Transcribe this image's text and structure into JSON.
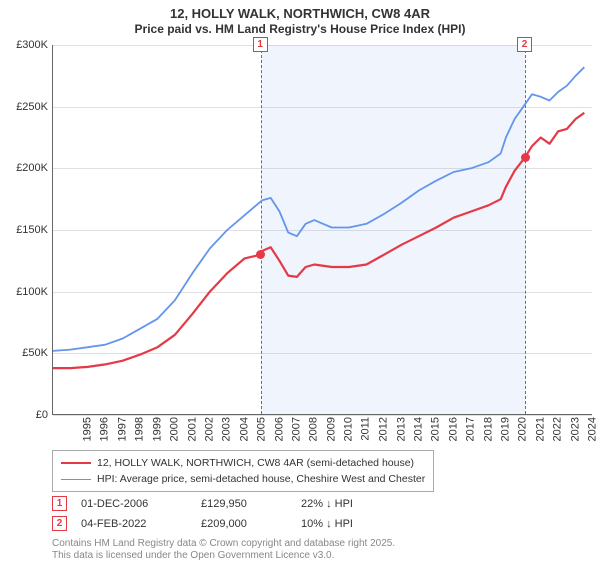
{
  "title": "12, HOLLY WALK, NORTHWICH, CW8 4AR",
  "subtitle": "Price paid vs. HM Land Registry's House Price Index (HPI)",
  "chart": {
    "type": "line",
    "xmin": 1995,
    "xmax": 2026,
    "ymin": 0,
    "ymax": 300000,
    "ytick_step": 50000,
    "ylabels": [
      "£0",
      "£50K",
      "£100K",
      "£150K",
      "£200K",
      "£250K",
      "£300K"
    ],
    "xlabels": [
      1995,
      1996,
      1997,
      1998,
      1999,
      2000,
      2001,
      2002,
      2003,
      2004,
      2005,
      2006,
      2007,
      2008,
      2009,
      2010,
      2011,
      2012,
      2013,
      2014,
      2015,
      2016,
      2017,
      2018,
      2019,
      2020,
      2021,
      2022,
      2023,
      2024,
      2025
    ],
    "shade_from": 2006.92,
    "shade_to": 2022.1,
    "series": [
      {
        "name": "subject",
        "color": "#e63946",
        "width": 2.2,
        "data": [
          [
            1995,
            38000
          ],
          [
            1996,
            38000
          ],
          [
            1997,
            39000
          ],
          [
            1998,
            41000
          ],
          [
            1999,
            44000
          ],
          [
            2000,
            49000
          ],
          [
            2001,
            55000
          ],
          [
            2002,
            65000
          ],
          [
            2003,
            82000
          ],
          [
            2004,
            100000
          ],
          [
            2005,
            115000
          ],
          [
            2006,
            127000
          ],
          [
            2006.92,
            129950
          ],
          [
            2007,
            133000
          ],
          [
            2007.5,
            136000
          ],
          [
            2008,
            125000
          ],
          [
            2008.5,
            113000
          ],
          [
            2009,
            112000
          ],
          [
            2009.5,
            120000
          ],
          [
            2010,
            122000
          ],
          [
            2011,
            120000
          ],
          [
            2012,
            120000
          ],
          [
            2013,
            122000
          ],
          [
            2014,
            130000
          ],
          [
            2015,
            138000
          ],
          [
            2016,
            145000
          ],
          [
            2017,
            152000
          ],
          [
            2018,
            160000
          ],
          [
            2019,
            165000
          ],
          [
            2020,
            170000
          ],
          [
            2020.7,
            175000
          ],
          [
            2021,
            185000
          ],
          [
            2021.5,
            198000
          ],
          [
            2022.1,
            209000
          ],
          [
            2022.5,
            218000
          ],
          [
            2023,
            225000
          ],
          [
            2023.5,
            220000
          ],
          [
            2024,
            230000
          ],
          [
            2024.5,
            232000
          ],
          [
            2025,
            240000
          ],
          [
            2025.5,
            245000
          ]
        ]
      },
      {
        "name": "hpi",
        "color": "#6495ed",
        "width": 1.8,
        "data": [
          [
            1995,
            52000
          ],
          [
            1996,
            53000
          ],
          [
            1997,
            55000
          ],
          [
            1998,
            57000
          ],
          [
            1999,
            62000
          ],
          [
            2000,
            70000
          ],
          [
            2001,
            78000
          ],
          [
            2002,
            93000
          ],
          [
            2003,
            115000
          ],
          [
            2004,
            135000
          ],
          [
            2005,
            150000
          ],
          [
            2006,
            162000
          ],
          [
            2007,
            174000
          ],
          [
            2007.5,
            176000
          ],
          [
            2008,
            165000
          ],
          [
            2008.5,
            148000
          ],
          [
            2009,
            145000
          ],
          [
            2009.5,
            155000
          ],
          [
            2010,
            158000
          ],
          [
            2010.5,
            155000
          ],
          [
            2011,
            152000
          ],
          [
            2012,
            152000
          ],
          [
            2013,
            155000
          ],
          [
            2014,
            163000
          ],
          [
            2015,
            172000
          ],
          [
            2016,
            182000
          ],
          [
            2017,
            190000
          ],
          [
            2018,
            197000
          ],
          [
            2019,
            200000
          ],
          [
            2020,
            205000
          ],
          [
            2020.7,
            212000
          ],
          [
            2021,
            225000
          ],
          [
            2021.5,
            240000
          ],
          [
            2022,
            250000
          ],
          [
            2022.5,
            260000
          ],
          [
            2023,
            258000
          ],
          [
            2023.5,
            255000
          ],
          [
            2024,
            262000
          ],
          [
            2024.5,
            267000
          ],
          [
            2025,
            275000
          ],
          [
            2025.5,
            282000
          ]
        ]
      }
    ],
    "markers": [
      {
        "n": "1",
        "x": 2006.92,
        "y": 129950
      },
      {
        "n": "2",
        "x": 2022.1,
        "y": 209000
      }
    ]
  },
  "legend": {
    "items": [
      {
        "color": "#e63946",
        "width": 2.2,
        "label": "12, HOLLY WALK, NORTHWICH, CW8 4AR (semi-detached house)"
      },
      {
        "color": "#6495ed",
        "width": 1.8,
        "label": "HPI: Average price, semi-detached house, Cheshire West and Chester"
      }
    ]
  },
  "sales": [
    {
      "n": "1",
      "date": "01-DEC-2006",
      "price": "£129,950",
      "diff": "22% ↓ HPI"
    },
    {
      "n": "2",
      "date": "04-FEB-2022",
      "price": "£209,000",
      "diff": "10% ↓ HPI"
    }
  ],
  "footer1": "Contains HM Land Registry data © Crown copyright and database right 2025.",
  "footer2": "This data is licensed under the Open Government Licence v3.0."
}
